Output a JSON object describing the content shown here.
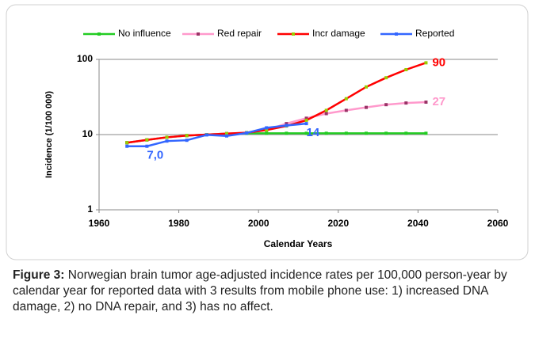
{
  "chart_data": {
    "type": "line",
    "x_label": "Calendar Years",
    "y_label": "Incidence (1/100 000)",
    "x": [
      1967,
      1972,
      1977,
      1982,
      1987,
      1992,
      1997,
      2002,
      2007,
      2012,
      2017,
      2022,
      2027,
      2032,
      2037,
      2042
    ],
    "xlim": [
      1960,
      2060
    ],
    "xticks": [
      1960,
      1980,
      2000,
      2020,
      2040,
      2060
    ],
    "ylim": [
      1,
      100
    ],
    "yticks": [
      1,
      10,
      100
    ],
    "log_y": true,
    "grid": true,
    "legend": "top",
    "series": [
      {
        "name": "No influence",
        "color": "#22cc22",
        "marker_color": "#22cc22",
        "values": [
          7.8,
          8.5,
          9.2,
          9.7,
          10.0,
          10.3,
          10.4,
          10.4,
          10.4,
          10.4,
          10.4,
          10.4,
          10.4,
          10.4,
          10.4,
          10.4
        ]
      },
      {
        "name": "Red repair",
        "color": "#ff99cc",
        "marker_color": "#993366",
        "values": [
          7.8,
          8.5,
          9.2,
          9.7,
          10.0,
          10.3,
          10.6,
          11.5,
          14,
          16.5,
          19,
          21,
          23,
          25,
          26.3,
          27
        ],
        "value_labels": [
          null,
          null,
          null,
          null,
          null,
          null,
          null,
          null,
          null,
          null,
          null,
          null,
          null,
          null,
          null,
          "27"
        ]
      },
      {
        "name": "Incr damage",
        "color": "#ff0000",
        "marker_color": "#99cc00",
        "values": [
          7.8,
          8.5,
          9.2,
          9.7,
          10.0,
          10.3,
          10.6,
          11.5,
          13,
          15.5,
          21,
          30,
          43,
          57,
          73,
          90
        ],
        "value_labels": [
          null,
          null,
          null,
          null,
          null,
          null,
          null,
          null,
          null,
          null,
          null,
          null,
          null,
          null,
          null,
          "90"
        ]
      },
      {
        "name": "Reported",
        "color": "#3366ff",
        "marker_color": "#3366ff",
        "values": [
          7.0,
          7.0,
          8.2,
          8.4,
          9.9,
          9.6,
          10.5,
          12.3,
          13.2,
          14,
          null,
          null,
          null,
          null,
          null,
          null
        ],
        "value_labels": [
          null,
          "7,0",
          null,
          null,
          null,
          null,
          null,
          null,
          null,
          "14",
          null,
          null,
          null,
          null,
          null,
          null
        ]
      }
    ]
  },
  "caption_label": "Figure 3:",
  "caption_text": "Norwegian brain tumor age-adjusted incidence rates per 100,000 person-year by calendar year for reported data with 3 results from mobile phone use: 1) increased DNA damage, 2) no DNA repair, and 3) has no affect."
}
